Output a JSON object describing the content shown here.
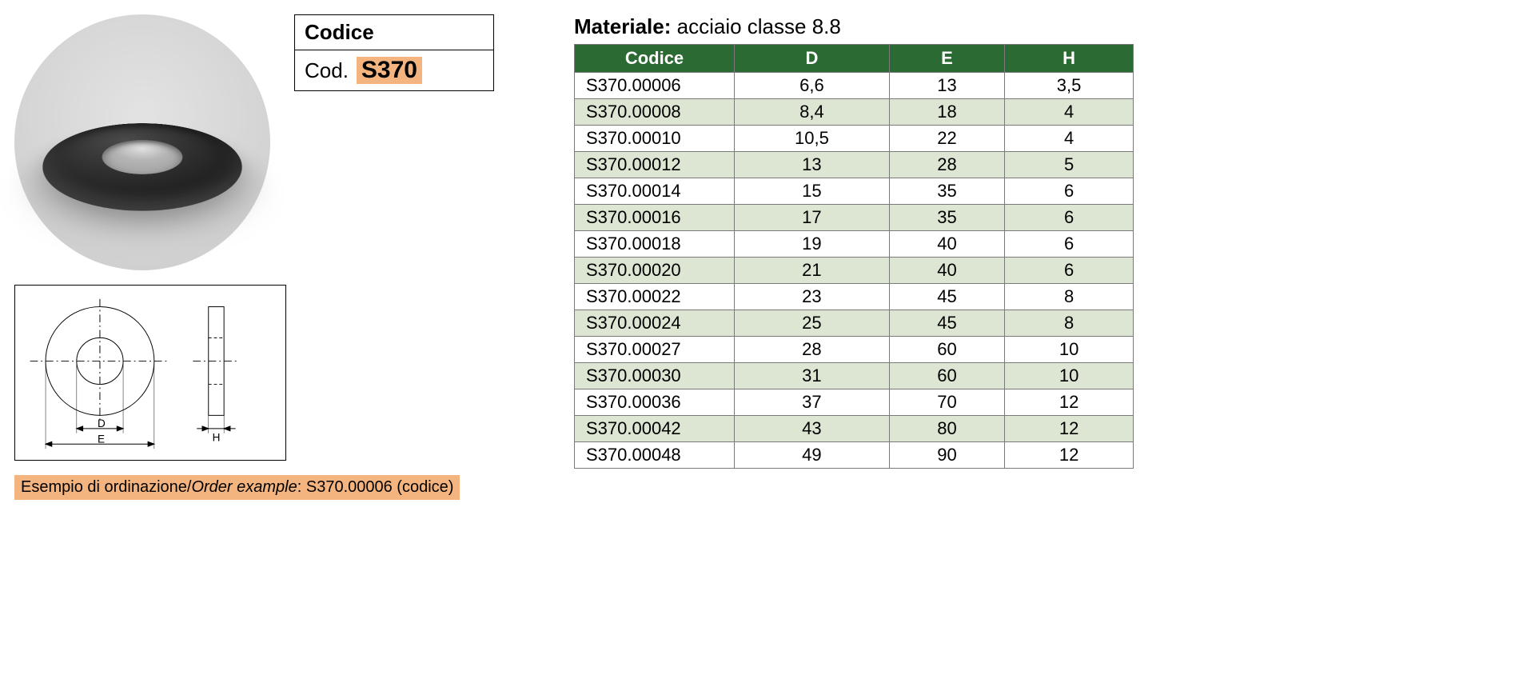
{
  "code_box": {
    "header": "Codice",
    "prefix": "Cod.",
    "code": "S370"
  },
  "materiale": {
    "label": "Materiale:",
    "value": "acciaio classe 8.8"
  },
  "table": {
    "columns": [
      "Codice",
      "D",
      "E",
      "H"
    ],
    "rows": [
      [
        "S370.00006",
        "6,6",
        "13",
        "3,5"
      ],
      [
        "S370.00008",
        "8,4",
        "18",
        "4"
      ],
      [
        "S370.00010",
        "10,5",
        "22",
        "4"
      ],
      [
        "S370.00012",
        "13",
        "28",
        "5"
      ],
      [
        "S370.00014",
        "15",
        "35",
        "6"
      ],
      [
        "S370.00016",
        "17",
        "35",
        "6"
      ],
      [
        "S370.00018",
        "19",
        "40",
        "6"
      ],
      [
        "S370.00020",
        "21",
        "40",
        "6"
      ],
      [
        "S370.00022",
        "23",
        "45",
        "8"
      ],
      [
        "S370.00024",
        "25",
        "45",
        "8"
      ],
      [
        "S370.00027",
        "28",
        "60",
        "10"
      ],
      [
        "S370.00030",
        "31",
        "60",
        "10"
      ],
      [
        "S370.00036",
        "37",
        "70",
        "12"
      ],
      [
        "S370.00042",
        "43",
        "80",
        "12"
      ],
      [
        "S370.00048",
        "49",
        "90",
        "12"
      ]
    ],
    "header_bg": "#2c6a34",
    "header_fg": "#ffffff",
    "alt_row_bg": "#dce6d3",
    "border_color": "#7a7a7a"
  },
  "drawing": {
    "labels": {
      "D": "D",
      "E": "E",
      "H": "H"
    }
  },
  "example": {
    "prefix": "Esempio di ordinazione/",
    "italic": "Order example",
    "value": ": S370.00006 (codice)"
  },
  "colors": {
    "highlight": "#f3b47f",
    "circle_bg": "#d6d6d6"
  }
}
